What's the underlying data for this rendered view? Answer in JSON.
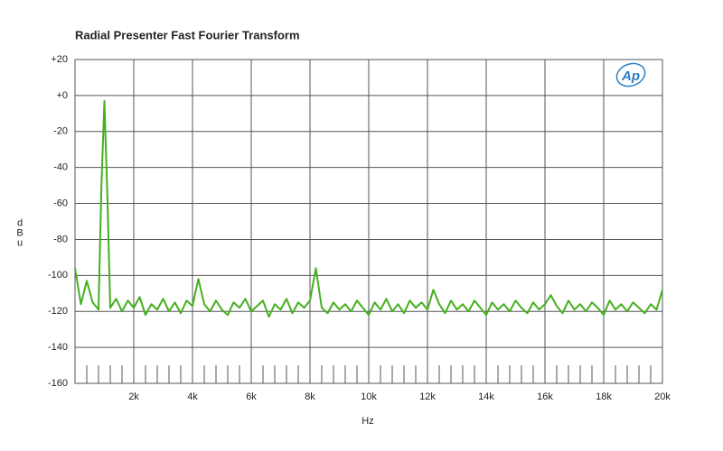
{
  "chart_data": {
    "type": "line",
    "title": "Radial Presenter Fast Fourier Transform",
    "xlabel": "Hz",
    "ylabel": "dBu",
    "logo": "Ap",
    "color": "#45b01f",
    "xlim": [
      0,
      20000
    ],
    "ylim": [
      -160,
      20
    ],
    "xticks": [
      {
        "value": 2000,
        "label": "2k"
      },
      {
        "value": 4000,
        "label": "4k"
      },
      {
        "value": 6000,
        "label": "6k"
      },
      {
        "value": 8000,
        "label": "8k"
      },
      {
        "value": 10000,
        "label": "10k"
      },
      {
        "value": 12000,
        "label": "12k"
      },
      {
        "value": 14000,
        "label": "14k"
      },
      {
        "value": 16000,
        "label": "16k"
      },
      {
        "value": 18000,
        "label": "18k"
      },
      {
        "value": 20000,
        "label": "20k"
      }
    ],
    "xminorticks": [
      400,
      800,
      1200,
      1600,
      2400,
      2800,
      3200,
      3600,
      4400,
      4800,
      5200,
      5600,
      6400,
      6800,
      7200,
      7600,
      8400,
      8800,
      9200,
      9600,
      10400,
      10800,
      11200,
      11600,
      12400,
      12800,
      13200,
      13600,
      14400,
      14800,
      15200,
      15600,
      16400,
      16800,
      17200,
      17600,
      18400,
      18800,
      19200,
      19600
    ],
    "yticks": [
      {
        "value": 20,
        "label": "+20"
      },
      {
        "value": 0,
        "label": "+0"
      },
      -20,
      -40,
      -60,
      -80,
      -100,
      -120,
      -140,
      -160
    ],
    "grid": true,
    "x": [
      0,
      200,
      400,
      600,
      800,
      900,
      1000,
      1100,
      1200,
      1400,
      1600,
      1800,
      2000,
      2200,
      2400,
      2600,
      2800,
      3000,
      3200,
      3400,
      3600,
      3800,
      4000,
      4200,
      4400,
      4600,
      4800,
      5000,
      5200,
      5400,
      5600,
      5800,
      6000,
      6200,
      6400,
      6600,
      6800,
      7000,
      7200,
      7400,
      7600,
      7800,
      8000,
      8200,
      8400,
      8600,
      8800,
      9000,
      9200,
      9400,
      9600,
      9800,
      10000,
      10200,
      10400,
      10600,
      10800,
      11000,
      11200,
      11400,
      11600,
      11800,
      12000,
      12200,
      12400,
      12600,
      12800,
      13000,
      13200,
      13400,
      13600,
      13800,
      14000,
      14200,
      14400,
      14600,
      14800,
      15000,
      15200,
      15400,
      15600,
      15800,
      16000,
      16200,
      16400,
      16600,
      16800,
      17000,
      17200,
      17400,
      17600,
      17800,
      18000,
      18200,
      18400,
      18600,
      18800,
      19000,
      19200,
      19400,
      19600,
      19800,
      20000
    ],
    "values": [
      -96,
      -116,
      -103,
      -115,
      -119,
      -50,
      -3,
      -55,
      -118,
      -113,
      -120,
      -114,
      -118,
      -112,
      -122,
      -116,
      -119,
      -113,
      -120,
      -115,
      -121,
      -114,
      -117,
      -102,
      -116,
      -120,
      -114,
      -119,
      -122,
      -115,
      -118,
      -113,
      -120,
      -117,
      -114,
      -123,
      -116,
      -119,
      -113,
      -121,
      -115,
      -118,
      -114,
      -96,
      -118,
      -121,
      -115,
      -119,
      -116,
      -120,
      -114,
      -118,
      -122,
      -115,
      -119,
      -113,
      -120,
      -116,
      -121,
      -114,
      -118,
      -115,
      -119,
      -108,
      -116,
      -121,
      -114,
      -119,
      -116,
      -120,
      -114,
      -118,
      -122,
      -115,
      -119,
      -116,
      -120,
      -114,
      -118,
      -121,
      -115,
      -119,
      -116,
      -111,
      -117,
      -121,
      -114,
      -119,
      -116,
      -120,
      -115,
      -118,
      -122,
      -114,
      -119,
      -116,
      -120,
      -115,
      -118,
      -121,
      -116,
      -119,
      -108
    ]
  }
}
